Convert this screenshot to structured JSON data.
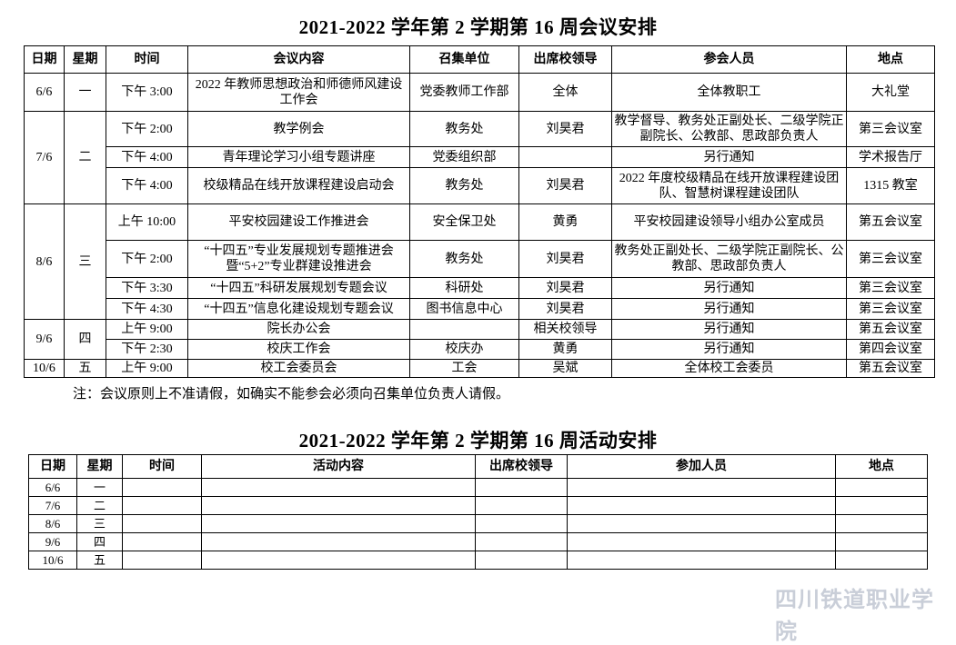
{
  "meeting": {
    "title": "2021-2022 学年第 2 学期第 16 周会议安排",
    "headers": [
      "日期",
      "星期",
      "时间",
      "会议内容",
      "召集单位",
      "出席校领导",
      "参会人员",
      "地点"
    ],
    "days": [
      {
        "date": "6/6",
        "weekday": "一",
        "rows": [
          {
            "time": "下午 3:00",
            "content": "2022 年教师思想政治和师德师风建设工作会",
            "convener": "党委教师工作部",
            "leader": "全体",
            "attendees": "全体教职工",
            "location": "大礼堂"
          }
        ]
      },
      {
        "date": "7/6",
        "weekday": "二",
        "rows": [
          {
            "time": "下午 2:00",
            "content": "教学例会",
            "convener": "教务处",
            "leader": "刘昊君",
            "attendees": "教学督导、教务处正副处长、二级学院正副院长、公教部、思政部负责人",
            "location": "第三会议室"
          },
          {
            "time": "下午 4:00",
            "content": "青年理论学习小组专题讲座",
            "convener": "党委组织部",
            "leader": "",
            "attendees": "另行通知",
            "location": "学术报告厅"
          },
          {
            "time": "下午 4:00",
            "content": "校级精品在线开放课程建设启动会",
            "convener": "教务处",
            "leader": "刘昊君",
            "attendees": "2022 年度校级精品在线开放课程建设团队、智慧树课程建设团队",
            "location": "1315 教室"
          }
        ]
      },
      {
        "date": "8/6",
        "weekday": "三",
        "rows": [
          {
            "time": "上午 10:00",
            "content": "平安校园建设工作推进会",
            "convener": "安全保卫处",
            "leader": "黄勇",
            "attendees": "平安校园建设领导小组办公室成员",
            "location": "第五会议室"
          },
          {
            "time": "下午 2:00",
            "content": "“十四五”专业发展规划专题推进会暨“5+2”专业群建设推进会",
            "convener": "教务处",
            "leader": "刘昊君",
            "attendees": "教务处正副处长、二级学院正副院长、公教部、思政部负责人",
            "location": "第三会议室"
          },
          {
            "time": "下午 3:30",
            "content": "“十四五”科研发展规划专题会议",
            "convener": "科研处",
            "leader": "刘昊君",
            "attendees": "另行通知",
            "location": "第三会议室"
          },
          {
            "time": "下午 4:30",
            "content": "“十四五”信息化建设规划专题会议",
            "convener": "图书信息中心",
            "leader": "刘昊君",
            "attendees": "另行通知",
            "location": "第三会议室"
          }
        ]
      },
      {
        "date": "9/6",
        "weekday": "四",
        "rows": [
          {
            "time": "上午 9:00",
            "content": "院长办公会",
            "convener": "",
            "leader": "相关校领导",
            "attendees": "另行通知",
            "location": "第五会议室"
          },
          {
            "time": "下午 2:30",
            "content": "校庆工作会",
            "convener": "校庆办",
            "leader": "黄勇",
            "attendees": "另行通知",
            "location": "第四会议室"
          }
        ]
      },
      {
        "date": "10/6",
        "weekday": "五",
        "rows": [
          {
            "time": "上午 9:00",
            "content": "校工会委员会",
            "convener": "工会",
            "leader": "吴斌",
            "attendees": "全体校工会委员",
            "location": "第五会议室"
          }
        ]
      }
    ],
    "note": "注：会议原则上不准请假，如确实不能参会必须向召集单位负责人请假。"
  },
  "activity": {
    "title": "2021-2022 学年第 2 学期第 16 周活动安排",
    "headers": [
      "日期",
      "星期",
      "时间",
      "活动内容",
      "出席校领导",
      "参加人员",
      "地点"
    ],
    "rows": [
      {
        "date": "6/6",
        "weekday": "一"
      },
      {
        "date": "7/6",
        "weekday": "二"
      },
      {
        "date": "8/6",
        "weekday": "三"
      },
      {
        "date": "9/6",
        "weekday": "四"
      },
      {
        "date": "10/6",
        "weekday": "五"
      }
    ]
  },
  "watermark": "四川铁道职业学院"
}
